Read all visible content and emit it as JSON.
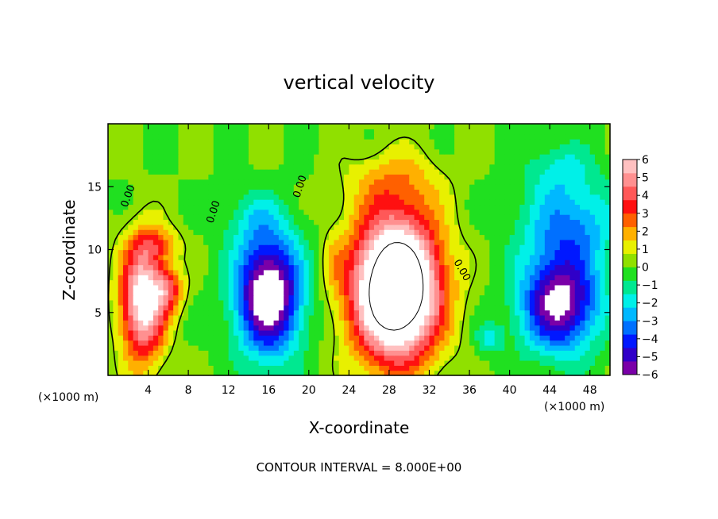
{
  "chart_data": {
    "type": "heatmap",
    "title": "vertical velocity",
    "xlabel": "X-coordinate",
    "ylabel": "Z-coordinate",
    "x_unit": "(×1000 m)",
    "x_unit_right": "(×1000 m)",
    "xlim": [
      0,
      50
    ],
    "ylim": [
      0,
      20
    ],
    "x_ticks": [
      4,
      8,
      12,
      16,
      20,
      24,
      28,
      32,
      36,
      40,
      44,
      48
    ],
    "y_ticks": [
      5,
      10,
      15
    ],
    "colorbar": {
      "min": -6,
      "max": 6,
      "ticks": [
        6,
        5,
        4,
        3,
        2,
        1,
        0,
        -1,
        -2,
        -3,
        -4,
        -5,
        -6
      ],
      "colors": [
        "#7a00a8",
        "#3000c8",
        "#0018ff",
        "#0070ff",
        "#00b8ff",
        "#00f0e8",
        "#00e890",
        "#20e020",
        "#90e000",
        "#e8f000",
        "#ffb000",
        "#ff6000",
        "#ff1010",
        "#ff5858",
        "#ff9090",
        "#ffc0c0"
      ]
    },
    "contour_label": "0.00",
    "contour_interval_note": "CONTOUR INTERVAL = 8.000E+00",
    "features": [
      {
        "x": 3.5,
        "z": 6.0,
        "rx": 2.6,
        "rz": 5.5,
        "w": 7.0
      },
      {
        "x": 6.0,
        "z": 6.8,
        "rx": 1.8,
        "rz": 2.0,
        "w": 3.0
      },
      {
        "x": 5.0,
        "z": 10.5,
        "rx": 2.5,
        "rz": 1.5,
        "w": 2.0
      },
      {
        "x": 16.0,
        "z": 6.5,
        "rx": 3.8,
        "rz": 5.5,
        "w": -7.5
      },
      {
        "x": 14.5,
        "z": 12.5,
        "rx": 3.5,
        "rz": 2.5,
        "w": -1.2
      },
      {
        "x": 28.7,
        "z": 7.0,
        "rx": 5.0,
        "rz": 6.5,
        "w": 12.0
      },
      {
        "x": 28.5,
        "z": 15.5,
        "rx": 5.5,
        "rz": 3.0,
        "w": 1.5
      },
      {
        "x": 45.0,
        "z": 5.8,
        "rx": 4.5,
        "rz": 4.5,
        "w": -6.5
      },
      {
        "x": 46.0,
        "z": 12.0,
        "rx": 5.5,
        "rz": 4.0,
        "w": -3.0
      },
      {
        "x": 45.0,
        "z": 16.5,
        "rx": 4.0,
        "rz": 2.5,
        "w": -1.5
      },
      {
        "x": 38.0,
        "z": 3.0,
        "rx": 1.6,
        "rz": 1.4,
        "w": -1.8
      },
      {
        "x": 22.5,
        "z": 9.0,
        "rx": 1.2,
        "rz": 3.0,
        "w": 0.8
      }
    ]
  }
}
